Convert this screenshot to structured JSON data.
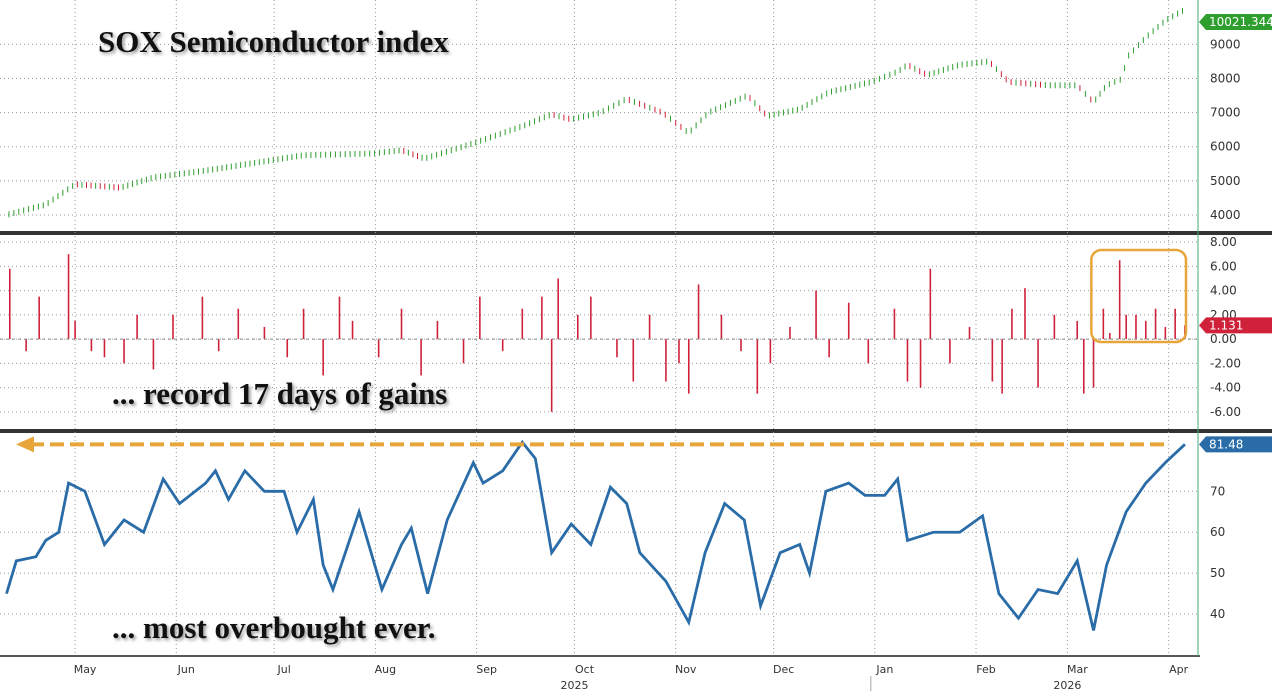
{
  "chart_data": [
    {
      "type": "line",
      "style": "ohlc-bars",
      "annotation": "SOX Semiconductor index",
      "ylim": [
        3500,
        10300
      ],
      "yticks": [
        4000,
        5000,
        6000,
        7000,
        8000,
        9000
      ],
      "last_value_label": "10021.344",
      "color": "#2e9e2e",
      "down_color": "#d0213a",
      "grid": true,
      "points": [
        [
          "2025-04-10",
          4000
        ],
        [
          "2025-04-22",
          4300
        ],
        [
          "2025-05-01",
          4900
        ],
        [
          "2025-05-15",
          4800
        ],
        [
          "2025-05-25",
          5100
        ],
        [
          "2025-06-10",
          5300
        ],
        [
          "2025-06-30",
          5600
        ],
        [
          "2025-07-10",
          5750
        ],
        [
          "2025-07-31",
          5800
        ],
        [
          "2025-08-09",
          5900
        ],
        [
          "2025-08-16",
          5650
        ],
        [
          "2025-08-31",
          6100
        ],
        [
          "2025-09-15",
          6600
        ],
        [
          "2025-09-24",
          6950
        ],
        [
          "2025-09-30",
          6800
        ],
        [
          "2025-10-09",
          7000
        ],
        [
          "2025-10-17",
          7400
        ],
        [
          "2025-10-28",
          7000
        ],
        [
          "2025-11-05",
          6400
        ],
        [
          "2025-11-11",
          7000
        ],
        [
          "2025-11-23",
          7500
        ],
        [
          "2025-11-29",
          6900
        ],
        [
          "2025-12-09",
          7100
        ],
        [
          "2025-12-18",
          7600
        ],
        [
          "2025-12-31",
          7900
        ],
        [
          "2026-01-08",
          8200
        ],
        [
          "2026-01-11",
          8400
        ],
        [
          "2026-01-17",
          8100
        ],
        [
          "2026-01-27",
          8400
        ],
        [
          "2026-02-05",
          8500
        ],
        [
          "2026-02-11",
          7900
        ],
        [
          "2026-02-23",
          7800
        ],
        [
          "2026-03-04",
          7800
        ],
        [
          "2026-03-09",
          7300
        ],
        [
          "2026-03-13",
          7800
        ],
        [
          "2026-03-18",
          8000
        ],
        [
          "2026-03-19",
          8600
        ],
        [
          "2026-03-25",
          9200
        ],
        [
          "2026-03-31",
          9700
        ],
        [
          "2026-04-06",
          10021.344
        ]
      ]
    },
    {
      "type": "bar",
      "annotation": "... record 17 days of gains",
      "ylim": [
        -7.5,
        8.5
      ],
      "yticks": [
        "8.00",
        "6.00",
        "4.00",
        "2.00",
        "0.00",
        "-2.00",
        "-4.00",
        "-6.00"
      ],
      "last_value_label": "1.131",
      "color": "#d0213a",
      "highlight": "recent 17-day streak",
      "highlight_color": "#e8a63a",
      "grid": true,
      "points": [
        [
          "2025-04-11",
          5.8
        ],
        [
          "2025-04-16",
          -1
        ],
        [
          "2025-04-20",
          3.5
        ],
        [
          "2025-04-29",
          7.0
        ],
        [
          "2025-05-01",
          1.5
        ],
        [
          "2025-05-06",
          -1
        ],
        [
          "2025-05-10",
          -1.5
        ],
        [
          "2025-05-16",
          -2
        ],
        [
          "2025-05-20",
          2
        ],
        [
          "2025-05-25",
          -2.5
        ],
        [
          "2025-05-31",
          2
        ],
        [
          "2025-06-09",
          3.5
        ],
        [
          "2025-06-14",
          -1
        ],
        [
          "2025-06-20",
          2.5
        ],
        [
          "2025-06-28",
          1
        ],
        [
          "2025-07-05",
          -1.5
        ],
        [
          "2025-07-10",
          2.5
        ],
        [
          "2025-07-16",
          -3
        ],
        [
          "2025-07-21",
          3.5
        ],
        [
          "2025-07-25",
          1.5
        ],
        [
          "2025-08-02",
          -1.5
        ],
        [
          "2025-08-09",
          2.5
        ],
        [
          "2025-08-15",
          -3
        ],
        [
          "2025-08-20",
          1.5
        ],
        [
          "2025-08-28",
          -2
        ],
        [
          "2025-09-02",
          3.5
        ],
        [
          "2025-09-09",
          -1
        ],
        [
          "2025-09-15",
          2.5
        ],
        [
          "2025-09-21",
          3.5
        ],
        [
          "2025-09-24",
          -6
        ],
        [
          "2025-09-26",
          5
        ],
        [
          "2025-10-02",
          2
        ],
        [
          "2025-10-06",
          3.5
        ],
        [
          "2025-10-14",
          -1.5
        ],
        [
          "2025-10-19",
          -3.5
        ],
        [
          "2025-10-24",
          2
        ],
        [
          "2025-10-29",
          -3.5
        ],
        [
          "2025-11-02",
          -2
        ],
        [
          "2025-11-05",
          -4.5
        ],
        [
          "2025-11-08",
          4.5
        ],
        [
          "2025-11-15",
          2
        ],
        [
          "2025-11-21",
          -1
        ],
        [
          "2025-11-26",
          -4.5
        ],
        [
          "2025-11-30",
          -2
        ],
        [
          "2025-12-06",
          1
        ],
        [
          "2025-12-14",
          4
        ],
        [
          "2025-12-18",
          -1.5
        ],
        [
          "2025-12-24",
          3
        ],
        [
          "2025-12-30",
          -2
        ],
        [
          "2026-01-07",
          2.5
        ],
        [
          "2026-01-11",
          -3.5
        ],
        [
          "2026-01-15",
          -4
        ],
        [
          "2026-01-18",
          5.8
        ],
        [
          "2026-01-24",
          -2
        ],
        [
          "2026-01-30",
          1
        ],
        [
          "2026-02-06",
          -3.5
        ],
        [
          "2026-02-09",
          -4.5
        ],
        [
          "2026-02-12",
          2.5
        ],
        [
          "2026-02-16",
          4.2
        ],
        [
          "2026-02-20",
          -4
        ],
        [
          "2026-02-25",
          2
        ],
        [
          "2026-03-04",
          1.5
        ],
        [
          "2026-03-06",
          -4.5
        ],
        [
          "2026-03-09",
          -4
        ],
        [
          "2026-03-12",
          2.5
        ],
        [
          "2026-03-14",
          0.5
        ],
        [
          "2026-03-17",
          6.5
        ],
        [
          "2026-03-19",
          2
        ],
        [
          "2026-03-22",
          2
        ],
        [
          "2026-03-25",
          1.5
        ],
        [
          "2026-03-28",
          2.5
        ],
        [
          "2026-03-31",
          1
        ],
        [
          "2026-04-03",
          2.5
        ],
        [
          "2026-04-06",
          1.131
        ]
      ]
    },
    {
      "type": "line",
      "annotation": "... most overbought ever.",
      "ylim": [
        30,
        84
      ],
      "yticks": [
        40,
        50,
        60,
        70
      ],
      "last_value_label": "81.48",
      "color": "#2a6ca8",
      "reference_line": {
        "value": 81.48,
        "color": "#e8a63a",
        "style": "dashed-arrow-left"
      },
      "grid": true,
      "points": [
        [
          "2025-04-10",
          45
        ],
        [
          "2025-04-13",
          53
        ],
        [
          "2025-04-19",
          54
        ],
        [
          "2025-04-22",
          58
        ],
        [
          "2025-04-26",
          60
        ],
        [
          "2025-04-29",
          72
        ],
        [
          "2025-05-04",
          70
        ],
        [
          "2025-05-10",
          57
        ],
        [
          "2025-05-16",
          63
        ],
        [
          "2025-05-22",
          60
        ],
        [
          "2025-05-28",
          73
        ],
        [
          "2025-06-02",
          67
        ],
        [
          "2025-06-10",
          72
        ],
        [
          "2025-06-13",
          75
        ],
        [
          "2025-06-17",
          68
        ],
        [
          "2025-06-22",
          75
        ],
        [
          "2025-06-28",
          70
        ],
        [
          "2025-07-04",
          70
        ],
        [
          "2025-07-08",
          60
        ],
        [
          "2025-07-13",
          68
        ],
        [
          "2025-07-16",
          52
        ],
        [
          "2025-07-19",
          46
        ],
        [
          "2025-07-27",
          65
        ],
        [
          "2025-08-03",
          46
        ],
        [
          "2025-08-09",
          57
        ],
        [
          "2025-08-12",
          61
        ],
        [
          "2025-08-17",
          45
        ],
        [
          "2025-08-23",
          63
        ],
        [
          "2025-08-31",
          77
        ],
        [
          "2025-09-03",
          72
        ],
        [
          "2025-09-09",
          75
        ],
        [
          "2025-09-15",
          82
        ],
        [
          "2025-09-19",
          78
        ],
        [
          "2025-09-24",
          55
        ],
        [
          "2025-09-30",
          62
        ],
        [
          "2025-10-06",
          57
        ],
        [
          "2025-10-12",
          71
        ],
        [
          "2025-10-17",
          67
        ],
        [
          "2025-10-21",
          55
        ],
        [
          "2025-10-29",
          48
        ],
        [
          "2025-11-05",
          38
        ],
        [
          "2025-11-10",
          55
        ],
        [
          "2025-11-16",
          67
        ],
        [
          "2025-11-22",
          63
        ],
        [
          "2025-11-27",
          42
        ],
        [
          "2025-12-03",
          55
        ],
        [
          "2025-12-09",
          57
        ],
        [
          "2025-12-12",
          50
        ],
        [
          "2025-12-17",
          70
        ],
        [
          "2025-12-24",
          72
        ],
        [
          "2025-12-29",
          69
        ],
        [
          "2026-01-04",
          69
        ],
        [
          "2026-01-08",
          73
        ],
        [
          "2026-01-11",
          58
        ],
        [
          "2026-01-19",
          60
        ],
        [
          "2026-01-27",
          60
        ],
        [
          "2026-02-03",
          64
        ],
        [
          "2026-02-08",
          45
        ],
        [
          "2026-02-14",
          39
        ],
        [
          "2026-02-20",
          46
        ],
        [
          "2026-02-26",
          45
        ],
        [
          "2026-03-04",
          53
        ],
        [
          "2026-03-09",
          36
        ],
        [
          "2026-03-13",
          52
        ],
        [
          "2026-03-19",
          65
        ],
        [
          "2026-03-25",
          72
        ],
        [
          "2026-03-31",
          77
        ],
        [
          "2026-04-06",
          81.48
        ]
      ]
    }
  ],
  "x_axis": {
    "domain": [
      "2025-04-08",
      "2026-04-10"
    ],
    "months": [
      [
        "2025-05-01",
        "May"
      ],
      [
        "2025-06-01",
        "Jun"
      ],
      [
        "2025-07-01",
        "Jul"
      ],
      [
        "2025-08-01",
        "Aug"
      ],
      [
        "2025-09-01",
        "Sep"
      ],
      [
        "2025-10-01",
        "Oct"
      ],
      [
        "2025-11-01",
        "Nov"
      ],
      [
        "2025-12-01",
        "Dec"
      ],
      [
        "2026-01-01",
        "Jan"
      ],
      [
        "2026-02-01",
        "Feb"
      ],
      [
        "2026-03-01",
        "Mar"
      ],
      [
        "2026-04-01",
        "Apr"
      ]
    ],
    "years": [
      [
        "2025-10-01",
        "2025"
      ],
      [
        "2026-03-01",
        "2026"
      ]
    ]
  }
}
